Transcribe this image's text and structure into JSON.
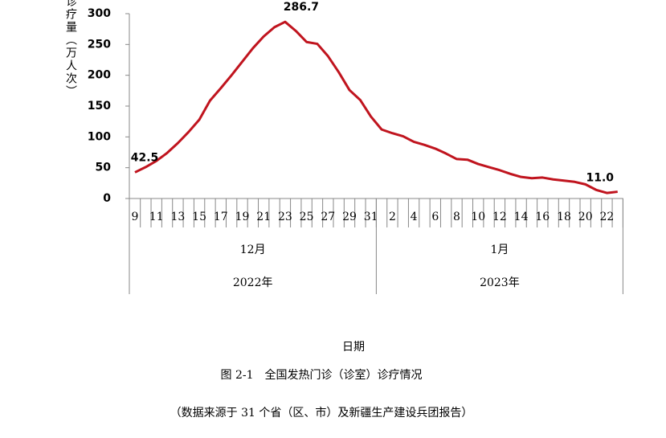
{
  "chart_data": {
    "type": "line",
    "y_label": "诊疗量（万人次）",
    "x_label": "日期",
    "caption": "图 2-1　全国发热门诊（诊室）诊疗情况",
    "source": "（数据来源于 31 个省（区、市）及新疆生产建设兵团报告）",
    "months": [
      {
        "label": "12月",
        "year": "2022年",
        "days": [
          "9",
          null,
          "11",
          null,
          "13",
          null,
          "15",
          null,
          "17",
          null,
          "19",
          null,
          "21",
          null,
          "23",
          null,
          "25",
          null,
          "27",
          null,
          "29",
          null,
          "31"
        ]
      },
      {
        "label": "1月",
        "year": "2023年",
        "days": [
          null,
          "2",
          null,
          "4",
          null,
          "6",
          null,
          "8",
          null,
          "10",
          null,
          "12",
          null,
          "14",
          null,
          "16",
          null,
          "18",
          null,
          "20",
          null,
          "22",
          null
        ]
      }
    ],
    "series": [
      {
        "color": "#c0141e",
        "values": [
          42.5,
          51,
          61,
          74,
          90,
          108,
          128,
          159,
          179,
          200,
          222,
          244,
          263,
          278,
          286.7,
          272,
          254,
          251,
          231,
          205,
          176,
          160,
          133,
          112,
          106,
          101,
          92,
          87,
          81,
          73,
          64,
          63,
          56,
          51,
          46,
          40,
          35,
          33,
          34,
          31,
          29,
          27,
          23,
          14,
          9,
          11.0
        ],
        "value_labels": [
          "42.5",
          null,
          null,
          null,
          null,
          null,
          null,
          null,
          null,
          null,
          null,
          null,
          null,
          null,
          "286.7",
          null,
          null,
          null,
          null,
          null,
          null,
          null,
          null,
          null,
          null,
          null,
          null,
          null,
          null,
          null,
          null,
          null,
          null,
          null,
          null,
          null,
          null,
          null,
          null,
          null,
          null,
          null,
          null,
          null,
          null,
          "11.0"
        ]
      }
    ],
    "ylim": [
      0,
      300
    ],
    "yticks": [
      0,
      50,
      100,
      150,
      200,
      250,
      300
    ]
  }
}
